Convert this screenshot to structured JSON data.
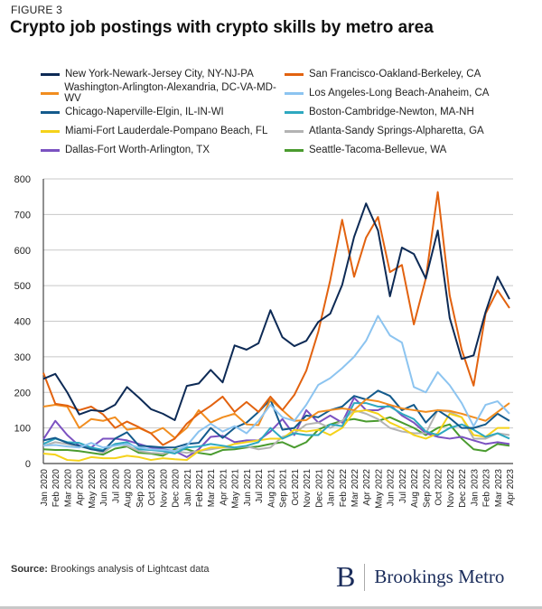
{
  "figure_label": "FIGURE 3",
  "title": "Crypto job postings with crypto skills by metro area",
  "source_label": "Source:",
  "source_text": "Brookings analysis of Lightcast data",
  "logo_text": "Brookings Metro",
  "chart_data": {
    "type": "line",
    "title": "Crypto job postings with crypto skills by metro area",
    "xlabel": "",
    "ylabel": "",
    "ylim": [
      0,
      800
    ],
    "yticks": [
      0,
      100,
      200,
      300,
      400,
      500,
      600,
      700,
      800
    ],
    "grid": true,
    "legend_position": "top",
    "x": [
      "Jan 2020",
      "Feb 2020",
      "Mar 2020",
      "Apr 2020",
      "May 2020",
      "Jun 2020",
      "Jul 2020",
      "Aug 2020",
      "Sep 2020",
      "Oct 2020",
      "Nov 2020",
      "Dec 2020",
      "Jan 2021",
      "Feb 2021",
      "Mar 2021",
      "Apr 2021",
      "May 2021",
      "Jun 2021",
      "Jul 2021",
      "Aug 2021",
      "Sep 2021",
      "Oct 2021",
      "Nov 2021",
      "Dec 2021",
      "Jan 2022",
      "Feb 2022",
      "Mar 2022",
      "Apr 2022",
      "May 2022",
      "Jun 2022",
      "Jul 2022",
      "Aug 2022",
      "Sep 2022",
      "Oct 2022",
      "Nov 2022",
      "Dec 2022",
      "Jan 2023",
      "Feb 2023",
      "Mar 2023",
      "Apr 2023"
    ],
    "series": [
      {
        "name": "New York-Newark-Jersey City, NY-NJ-PA",
        "color": "#0d2a55",
        "values": [
          238,
          252,
          200,
          138,
          150,
          147,
          165,
          215,
          185,
          153,
          140,
          122,
          218,
          225,
          263,
          228,
          332,
          320,
          338,
          431,
          355,
          330,
          345,
          398,
          421,
          502,
          637,
          731,
          655,
          470,
          607,
          589,
          520,
          655,
          409,
          294,
          304,
          426,
          525,
          462
        ]
      },
      {
        "name": "San Francisco-Oakland-Berkeley, CA",
        "color": "#e2620f",
        "values": [
          255,
          168,
          163,
          150,
          160,
          138,
          100,
          118,
          102,
          85,
          52,
          70,
          112,
          140,
          162,
          188,
          145,
          173,
          145,
          188,
          150,
          193,
          261,
          370,
          515,
          685,
          525,
          635,
          693,
          538,
          558,
          391,
          520,
          763,
          472,
          320,
          219,
          421,
          487,
          437
        ]
      },
      {
        "name": "Washington-Arlington-Alexandria, DC-VA-MD-WV",
        "color": "#f18d1f",
        "values": [
          160,
          165,
          160,
          100,
          125,
          120,
          130,
          95,
          100,
          85,
          100,
          72,
          100,
          150,
          115,
          130,
          140,
          110,
          108,
          180,
          150,
          120,
          122,
          145,
          150,
          155,
          150,
          180,
          175,
          165,
          155,
          150,
          145,
          150,
          148,
          140,
          130,
          120,
          145,
          170
        ]
      },
      {
        "name": "Los Angeles-Long Beach-Anaheim, CA",
        "color": "#8cc4f0",
        "values": [
          50,
          52,
          48,
          45,
          58,
          45,
          50,
          55,
          45,
          40,
          38,
          35,
          50,
          90,
          112,
          90,
          105,
          85,
          120,
          165,
          130,
          120,
          165,
          221,
          240,
          268,
          300,
          345,
          415,
          360,
          340,
          215,
          200,
          257,
          220,
          170,
          105,
          165,
          175,
          140
        ]
      },
      {
        "name": "Chicago-Naperville-Elgin, IL-IN-WI",
        "color": "#135a8c",
        "values": [
          65,
          72,
          58,
          50,
          40,
          35,
          70,
          88,
          50,
          48,
          45,
          45,
          55,
          58,
          100,
          72,
          100,
          115,
          145,
          180,
          95,
          100,
          135,
          130,
          150,
          160,
          190,
          180,
          205,
          190,
          150,
          165,
          115,
          150,
          128,
          100,
          100,
          110,
          140,
          120
        ]
      },
      {
        "name": "Boston-Cambridge-Newton, MA-NH",
        "color": "#2ea8c0",
        "values": [
          55,
          70,
          60,
          58,
          45,
          38,
          55,
          60,
          40,
          38,
          35,
          28,
          45,
          48,
          55,
          50,
          45,
          50,
          60,
          100,
          70,
          85,
          80,
          80,
          110,
          105,
          170,
          170,
          160,
          160,
          140,
          125,
          90,
          80,
          100,
          110,
          95,
          75,
          85,
          70
        ]
      },
      {
        "name": "Miami-Fort Lauderdale-Pompano Beach, FL",
        "color": "#f5d21a",
        "values": [
          28,
          25,
          10,
          8,
          18,
          15,
          15,
          22,
          18,
          10,
          15,
          12,
          10,
          35,
          45,
          45,
          55,
          60,
          65,
          70,
          70,
          95,
          90,
          95,
          80,
          100,
          145,
          150,
          140,
          115,
          100,
          80,
          70,
          85,
          140,
          130,
          80,
          75,
          100,
          100
        ]
      },
      {
        "name": "Atlanta-Sandy Springs-Alpharetta, GA",
        "color": "#b3b3b3",
        "values": [
          50,
          60,
          55,
          48,
          42,
          30,
          55,
          50,
          35,
          30,
          28,
          35,
          30,
          35,
          40,
          45,
          45,
          48,
          40,
          45,
          75,
          85,
          110,
          115,
          100,
          120,
          150,
          140,
          125,
          100,
          90,
          85,
          85,
          150,
          145,
          130,
          70,
          70,
          85,
          80
        ]
      },
      {
        "name": "Dallas-Fort Worth-Arlington, TX",
        "color": "#7b52c1",
        "values": [
          68,
          120,
          80,
          50,
          45,
          70,
          70,
          65,
          55,
          45,
          40,
          35,
          18,
          40,
          75,
          78,
          60,
          65,
          65,
          90,
          125,
          80,
          150,
          115,
          135,
          115,
          185,
          150,
          150,
          165,
          135,
          115,
          85,
          75,
          70,
          75,
          65,
          55,
          60,
          55
        ]
      },
      {
        "name": "Seattle-Tacoma-Bellevue, WA",
        "color": "#4a9b2f",
        "values": [
          40,
          38,
          38,
          35,
          30,
          25,
          42,
          48,
          30,
          28,
          22,
          40,
          40,
          30,
          25,
          38,
          40,
          45,
          48,
          55,
          60,
          45,
          60,
          95,
          110,
          120,
          125,
          118,
          120,
          130,
          115,
          100,
          80,
          100,
          110,
          70,
          40,
          35,
          55,
          50
        ]
      }
    ]
  }
}
